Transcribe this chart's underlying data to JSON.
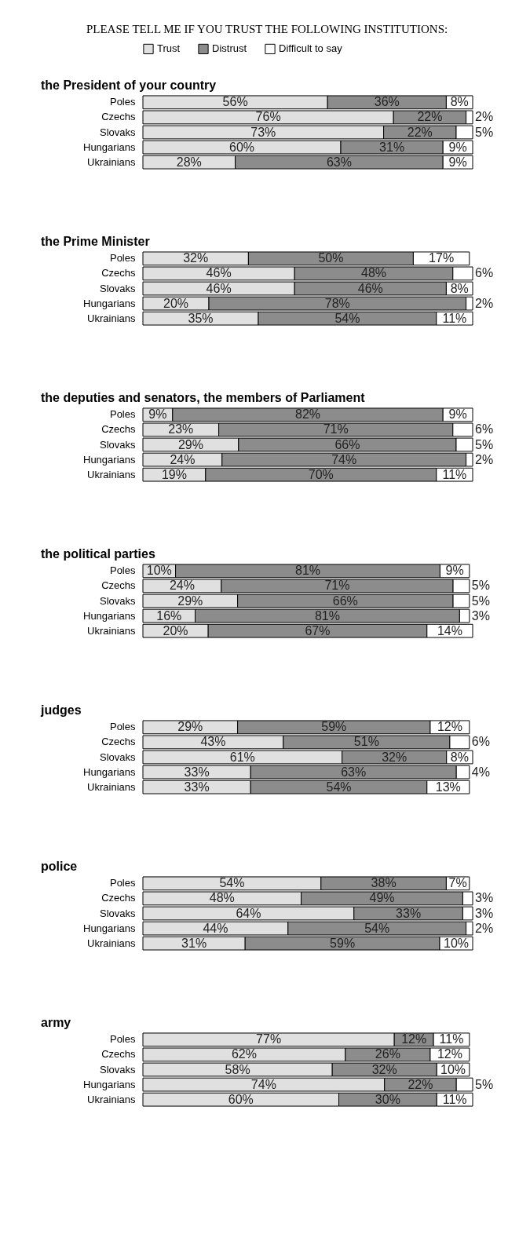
{
  "chart_data": [
    {
      "type": "bar",
      "orientation": "horizontal",
      "stacked": true,
      "legend": "top",
      "title": "PLEASE TELL ME IF YOU TRUST THE FOLLOWING INSTITUTIONS:",
      "subtitle": "the President of your country",
      "categories": [
        "Poles",
        "Czechs",
        "Slovaks",
        "Hungarians",
        "Ukrainians"
      ],
      "series": [
        {
          "name": "Trust",
          "color": "#e0e0e0",
          "values": [
            56,
            76,
            73,
            60,
            28
          ],
          "value_labels": [
            "56%",
            "76%",
            "73%",
            "60%",
            "28%"
          ]
        },
        {
          "name": "Distrust",
          "color": "#8c8c8c",
          "values": [
            36,
            22,
            22,
            31,
            63
          ],
          "value_labels": [
            "36%",
            "22%",
            "22%",
            "31%",
            "63%"
          ]
        },
        {
          "name": "Difficult to say",
          "color": "#ffffff",
          "values": [
            8,
            2,
            5,
            9,
            9
          ],
          "value_labels": [
            "8%",
            "2%",
            "5%",
            "9%",
            "9%"
          ]
        }
      ]
    },
    {
      "type": "bar",
      "orientation": "horizontal",
      "stacked": true,
      "title": "the Prime Minister",
      "categories": [
        "Poles",
        "Czechs",
        "Slovaks",
        "Hungarians",
        "Ukrainians"
      ],
      "series": [
        {
          "color": "#e0e0e0",
          "values": [
            32,
            46,
            46,
            20,
            35
          ],
          "value_labels": [
            "32%",
            "46%",
            "46%",
            "20%",
            "35%"
          ]
        },
        {
          "color": "#8c8c8c",
          "values": [
            50,
            48,
            46,
            78,
            54
          ],
          "value_labels": [
            "50%",
            "48%",
            "46%",
            "78%",
            "54%"
          ]
        },
        {
          "color": "#ffffff",
          "values": [
            17,
            6,
            8,
            2,
            11
          ],
          "value_labels": [
            "17%",
            "6%",
            "8%",
            "2%",
            "11%"
          ]
        }
      ]
    },
    {
      "type": "bar",
      "orientation": "horizontal",
      "stacked": true,
      "title": "the deputies and senators, the members of Parliament",
      "categories": [
        "Poles",
        "Czechs",
        "Slovaks",
        "Hungarians",
        "Ukrainians"
      ],
      "series": [
        {
          "color": "#e0e0e0",
          "values": [
            9,
            23,
            29,
            24,
            19
          ],
          "value_labels": [
            "9%",
            "23%",
            "29%",
            "24%",
            "19%"
          ]
        },
        {
          "color": "#8c8c8c",
          "values": [
            82,
            71,
            66,
            74,
            70
          ],
          "value_labels": [
            "82%",
            "71%",
            "66%",
            "74%",
            "70%"
          ]
        },
        {
          "color": "#ffffff",
          "values": [
            9,
            6,
            5,
            2,
            11
          ],
          "value_labels": [
            "9%",
            "6%",
            "5%",
            "2%",
            "11%"
          ]
        }
      ]
    },
    {
      "type": "bar",
      "orientation": "horizontal",
      "stacked": true,
      "title": "the political parties",
      "categories": [
        "Poles",
        "Czechs",
        "Slovaks",
        "Hungarians",
        "Ukrainians"
      ],
      "series": [
        {
          "color": "#e0e0e0",
          "values": [
            10,
            24,
            29,
            16,
            20
          ],
          "value_labels": [
            "10%",
            "24%",
            "29%",
            "16%",
            "20%"
          ]
        },
        {
          "color": "#8c8c8c",
          "values": [
            81,
            71,
            66,
            81,
            67
          ],
          "value_labels": [
            "81%",
            "71%",
            "66%",
            "81%",
            "67%"
          ]
        },
        {
          "color": "#ffffff",
          "values": [
            9,
            5,
            5,
            3,
            14
          ],
          "value_labels": [
            "9%",
            "5%",
            "5%",
            "3%",
            "14%"
          ]
        }
      ]
    },
    {
      "type": "bar",
      "orientation": "horizontal",
      "stacked": true,
      "title": "judges",
      "categories": [
        "Poles",
        "Czechs",
        "Slovaks",
        "Hungarians",
        "Ukrainians"
      ],
      "series": [
        {
          "color": "#e0e0e0",
          "values": [
            29,
            43,
            61,
            33,
            33
          ],
          "value_labels": [
            "29%",
            "43%",
            "61%",
            "33%",
            "33%"
          ]
        },
        {
          "color": "#8c8c8c",
          "values": [
            59,
            51,
            32,
            63,
            54
          ],
          "value_labels": [
            "59%",
            "51%",
            "32%",
            "63%",
            "54%"
          ]
        },
        {
          "color": "#ffffff",
          "values": [
            12,
            6,
            8,
            4,
            13
          ],
          "value_labels": [
            "12%",
            "6%",
            "8%",
            "4%",
            "13%"
          ]
        }
      ]
    },
    {
      "type": "bar",
      "orientation": "horizontal",
      "stacked": true,
      "title": "police",
      "categories": [
        "Poles",
        "Czechs",
        "Slovaks",
        "Hungarians",
        "Ukrainians"
      ],
      "series": [
        {
          "color": "#e0e0e0",
          "values": [
            54,
            48,
            64,
            44,
            31
          ],
          "value_labels": [
            "54%",
            "48%",
            "64%",
            "44%",
            "31%"
          ]
        },
        {
          "color": "#8c8c8c",
          "values": [
            38,
            49,
            33,
            54,
            59
          ],
          "value_labels": [
            "38%",
            "49%",
            "33%",
            "54%",
            "59%"
          ]
        },
        {
          "color": "#ffffff",
          "values": [
            7,
            3,
            3,
            2,
            10
          ],
          "value_labels": [
            "7%",
            "3%",
            "3%",
            "2%",
            "10%"
          ]
        }
      ]
    },
    {
      "type": "bar",
      "orientation": "horizontal",
      "stacked": true,
      "title": "army",
      "categories": [
        "Poles",
        "Czechs",
        "Slovaks",
        "Hungarians",
        "Ukrainians"
      ],
      "series": [
        {
          "color": "#e0e0e0",
          "values": [
            77,
            62,
            58,
            74,
            60
          ],
          "value_labels": [
            "77%",
            "62%",
            "58%",
            "74%",
            "60%"
          ]
        },
        {
          "color": "#8c8c8c",
          "values": [
            12,
            26,
            32,
            22,
            30
          ],
          "value_labels": [
            "12%",
            "26%",
            "32%",
            "22%",
            "30%"
          ]
        },
        {
          "color": "#ffffff",
          "values": [
            11,
            12,
            10,
            5,
            11
          ],
          "value_labels": [
            "11%",
            "12%",
            "10%",
            "5%",
            "11%"
          ]
        }
      ]
    }
  ]
}
